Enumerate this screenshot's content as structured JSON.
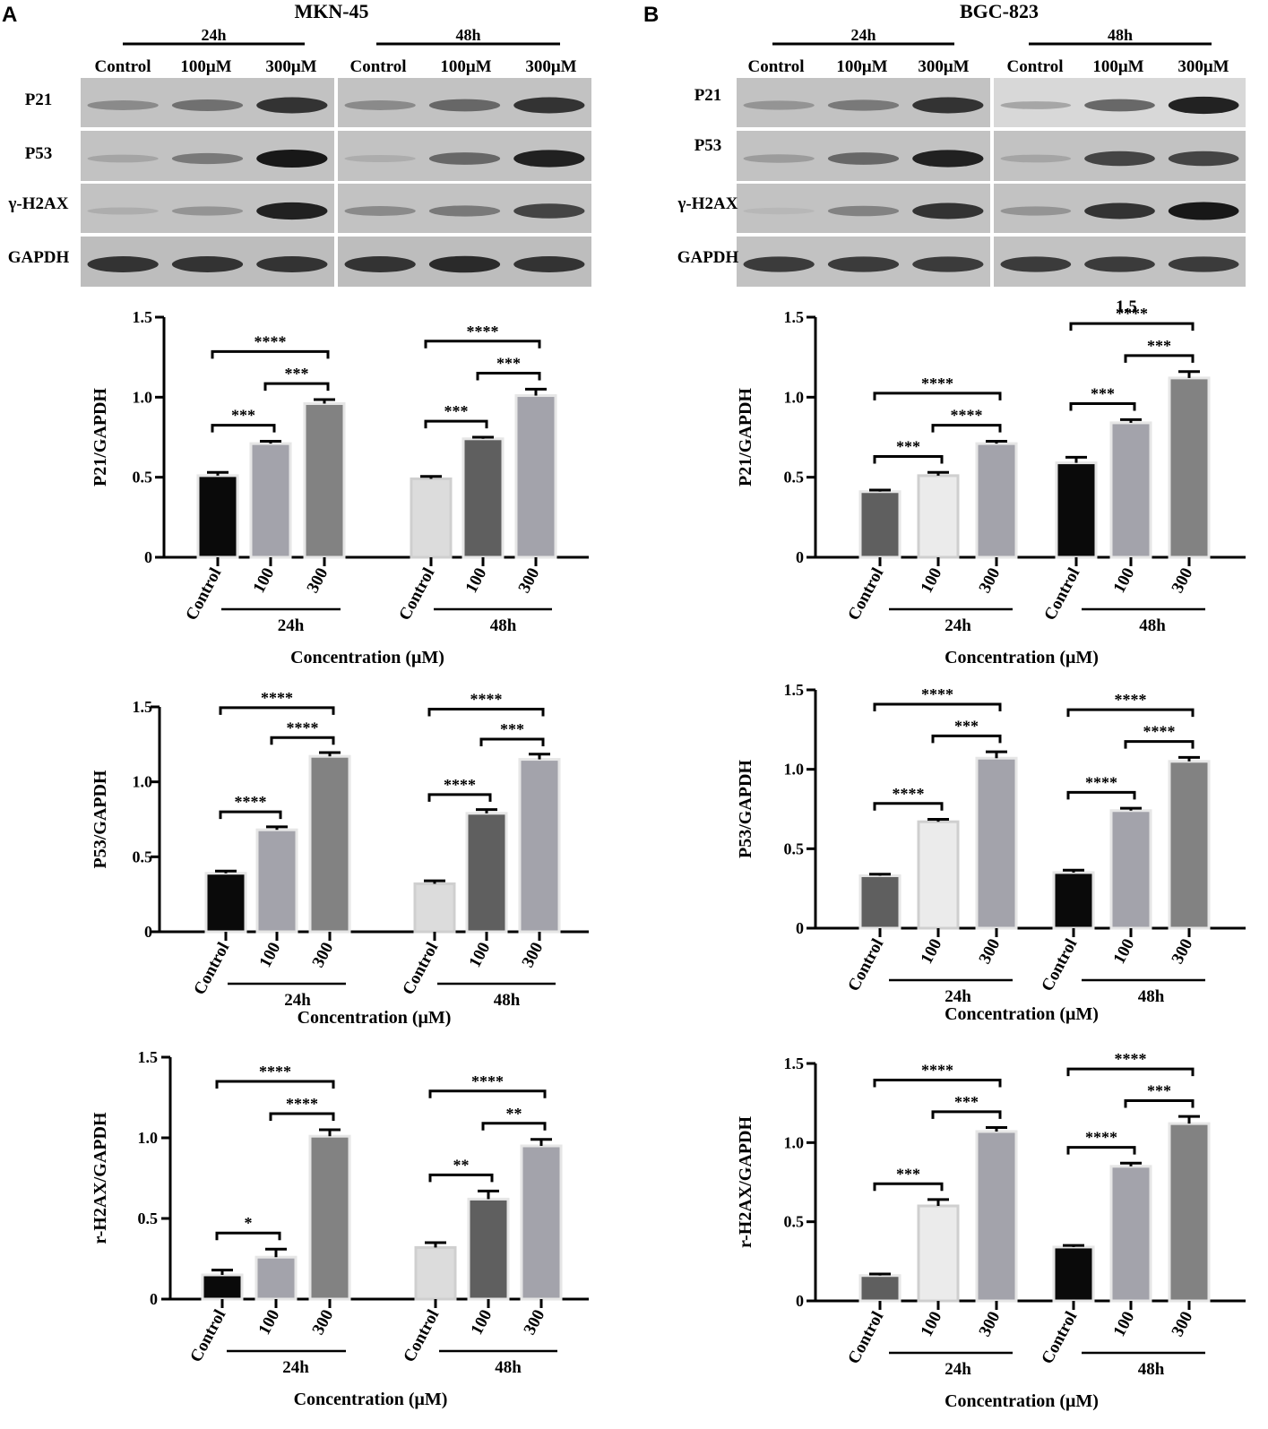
{
  "panels": [
    {
      "letter": "A",
      "cell_line": "MKN-45",
      "blot": {
        "time_labels": [
          "24h",
          "48h"
        ],
        "lane_labels": [
          "Control",
          "100μM",
          "300μM",
          "Control",
          "100μM",
          "300μM"
        ],
        "proteins": [
          "P21",
          "P53",
          "γ-H2AX",
          "GAPDH"
        ]
      }
    },
    {
      "letter": "B",
      "cell_line": "BGC-823",
      "blot": {
        "time_labels": [
          "24h",
          "48h"
        ],
        "lane_labels": [
          "Control",
          "100μM",
          "300μM",
          "Control",
          "100μM",
          "300μM"
        ],
        "proteins": [
          "P21",
          "P53",
          "γ-H2AX",
          "GAPDH"
        ]
      }
    }
  ],
  "chart_data": [
    {
      "panel": "A",
      "type": "bar",
      "ylabel": "P21/GAPDH",
      "xlabel": "Concentration (μM)",
      "ylim": [
        0,
        1.5
      ],
      "yticks": [
        "0",
        "0.5",
        "1.0",
        "1.5"
      ],
      "categories": [
        "Control",
        "100",
        "300",
        "Control",
        "100",
        "300"
      ],
      "groups": [
        "24h",
        "48h"
      ],
      "values": [
        0.51,
        0.71,
        0.96,
        0.49,
        0.74,
        1.01
      ],
      "errors": [
        0.02,
        0.015,
        0.025,
        0.015,
        0.01,
        0.04
      ],
      "bar_colors": [
        "#0a0a0a",
        "#a3a3ab",
        "#828282",
        "#dcdcdc",
        "#5f5f5f",
        "#a3a3ab"
      ],
      "comparisons": [
        {
          "from": 0,
          "to": 1,
          "label": "***"
        },
        {
          "from": 1,
          "to": 2,
          "label": "***"
        },
        {
          "from": 0,
          "to": 2,
          "label": "****"
        },
        {
          "from": 3,
          "to": 4,
          "label": "***"
        },
        {
          "from": 4,
          "to": 5,
          "label": "***"
        },
        {
          "from": 3,
          "to": 5,
          "label": "****"
        }
      ]
    },
    {
      "panel": "A",
      "type": "bar",
      "ylabel": "P53/GAPDH",
      "xlabel": "Concentration (μM)",
      "ylim": [
        0,
        1.5
      ],
      "yticks": [
        "0",
        "0.5",
        "1.0",
        "1.5"
      ],
      "categories": [
        "Control",
        "100",
        "300",
        "Control",
        "100",
        "300"
      ],
      "groups": [
        "24h",
        "48h"
      ],
      "values": [
        0.39,
        0.68,
        1.17,
        0.32,
        0.79,
        1.15
      ],
      "errors": [
        0.015,
        0.02,
        0.025,
        0.02,
        0.025,
        0.035
      ],
      "bar_colors": [
        "#0a0a0a",
        "#a3a3ab",
        "#828282",
        "#dcdcdc",
        "#5f5f5f",
        "#a3a3ab"
      ],
      "comparisons": [
        {
          "from": 0,
          "to": 1,
          "label": "****"
        },
        {
          "from": 1,
          "to": 2,
          "label": "****"
        },
        {
          "from": 0,
          "to": 2,
          "label": "****"
        },
        {
          "from": 3,
          "to": 4,
          "label": "****"
        },
        {
          "from": 4,
          "to": 5,
          "label": "***"
        },
        {
          "from": 3,
          "to": 5,
          "label": "****"
        }
      ]
    },
    {
      "panel": "A",
      "type": "bar",
      "ylabel": "r-H2AX/GAPDH",
      "xlabel": "Concentration (μM)",
      "ylim": [
        0,
        1.5
      ],
      "yticks": [
        "0",
        "0.5",
        "1.0",
        "1.5"
      ],
      "categories": [
        "Control",
        "100",
        "300",
        "Control",
        "100",
        "300"
      ],
      "groups": [
        "24h",
        "48h"
      ],
      "values": [
        0.15,
        0.26,
        1.01,
        0.32,
        0.62,
        0.95
      ],
      "errors": [
        0.03,
        0.05,
        0.04,
        0.03,
        0.05,
        0.04
      ],
      "bar_colors": [
        "#0a0a0a",
        "#a3a3ab",
        "#828282",
        "#dcdcdc",
        "#5f5f5f",
        "#a3a3ab"
      ],
      "comparisons": [
        {
          "from": 0,
          "to": 1,
          "label": "*"
        },
        {
          "from": 1,
          "to": 2,
          "label": "****"
        },
        {
          "from": 0,
          "to": 2,
          "label": "****"
        },
        {
          "from": 3,
          "to": 4,
          "label": "**"
        },
        {
          "from": 4,
          "to": 5,
          "label": "**"
        },
        {
          "from": 3,
          "to": 5,
          "label": "****"
        }
      ]
    },
    {
      "panel": "B",
      "type": "bar",
      "ylabel": "P21/GAPDH",
      "xlabel": "Concentration (μM)",
      "ylim": [
        0,
        1.5
      ],
      "yticks": [
        "0",
        "0.5",
        "1.0",
        "1.5"
      ],
      "extra_label": "1.5",
      "categories": [
        "Control",
        "100",
        "300",
        "Control",
        "100",
        "300"
      ],
      "groups": [
        "24h",
        "48h"
      ],
      "values": [
        0.41,
        0.51,
        0.71,
        0.59,
        0.84,
        1.12
      ],
      "errors": [
        0.01,
        0.02,
        0.015,
        0.035,
        0.02,
        0.04
      ],
      "bar_colors": [
        "#5f5f5f",
        "#ebebeb",
        "#a3a3ab",
        "#0a0a0a",
        "#a3a3ab",
        "#828282"
      ],
      "comparisons": [
        {
          "from": 0,
          "to": 1,
          "label": "***"
        },
        {
          "from": 1,
          "to": 2,
          "label": "****"
        },
        {
          "from": 0,
          "to": 2,
          "label": "****"
        },
        {
          "from": 3,
          "to": 4,
          "label": "***"
        },
        {
          "from": 4,
          "to": 5,
          "label": "***"
        },
        {
          "from": 3,
          "to": 5,
          "label": "****"
        }
      ]
    },
    {
      "panel": "B",
      "type": "bar",
      "ylabel": "P53/GAPDH",
      "xlabel": "Concentration (μM)",
      "ylim": [
        0,
        1.5
      ],
      "yticks": [
        "0",
        "0.5",
        "1.0",
        "1.5"
      ],
      "categories": [
        "Control",
        "100",
        "300",
        "Control",
        "100",
        "300"
      ],
      "groups": [
        "24h",
        "48h"
      ],
      "values": [
        0.33,
        0.67,
        1.07,
        0.35,
        0.74,
        1.05
      ],
      "errors": [
        0.01,
        0.015,
        0.04,
        0.015,
        0.015,
        0.025
      ],
      "bar_colors": [
        "#5f5f5f",
        "#ebebeb",
        "#a3a3ab",
        "#0a0a0a",
        "#a3a3ab",
        "#828282"
      ],
      "comparisons": [
        {
          "from": 0,
          "to": 1,
          "label": "****"
        },
        {
          "from": 1,
          "to": 2,
          "label": "***"
        },
        {
          "from": 0,
          "to": 2,
          "label": "****"
        },
        {
          "from": 3,
          "to": 4,
          "label": "****"
        },
        {
          "from": 4,
          "to": 5,
          "label": "****"
        },
        {
          "from": 3,
          "to": 5,
          "label": "****"
        }
      ]
    },
    {
      "panel": "B",
      "type": "bar",
      "ylabel": "r-H2AX/GAPDH",
      "xlabel": "Concentration (μM)",
      "ylim": [
        0,
        1.5
      ],
      "yticks": [
        "0",
        "0.5",
        "1.0",
        "1.5"
      ],
      "categories": [
        "Control",
        "100",
        "300",
        "Control",
        "100",
        "300"
      ],
      "groups": [
        "24h",
        "48h"
      ],
      "values": [
        0.16,
        0.6,
        1.07,
        0.34,
        0.85,
        1.12
      ],
      "errors": [
        0.01,
        0.04,
        0.025,
        0.01,
        0.02,
        0.045
      ],
      "bar_colors": [
        "#5f5f5f",
        "#ebebeb",
        "#a3a3ab",
        "#0a0a0a",
        "#a3a3ab",
        "#828282"
      ],
      "comparisons": [
        {
          "from": 0,
          "to": 1,
          "label": "***"
        },
        {
          "from": 1,
          "to": 2,
          "label": "***"
        },
        {
          "from": 0,
          "to": 2,
          "label": "****"
        },
        {
          "from": 3,
          "to": 4,
          "label": "****"
        },
        {
          "from": 4,
          "to": 5,
          "label": "***"
        },
        {
          "from": 3,
          "to": 5,
          "label": "****"
        }
      ]
    }
  ]
}
